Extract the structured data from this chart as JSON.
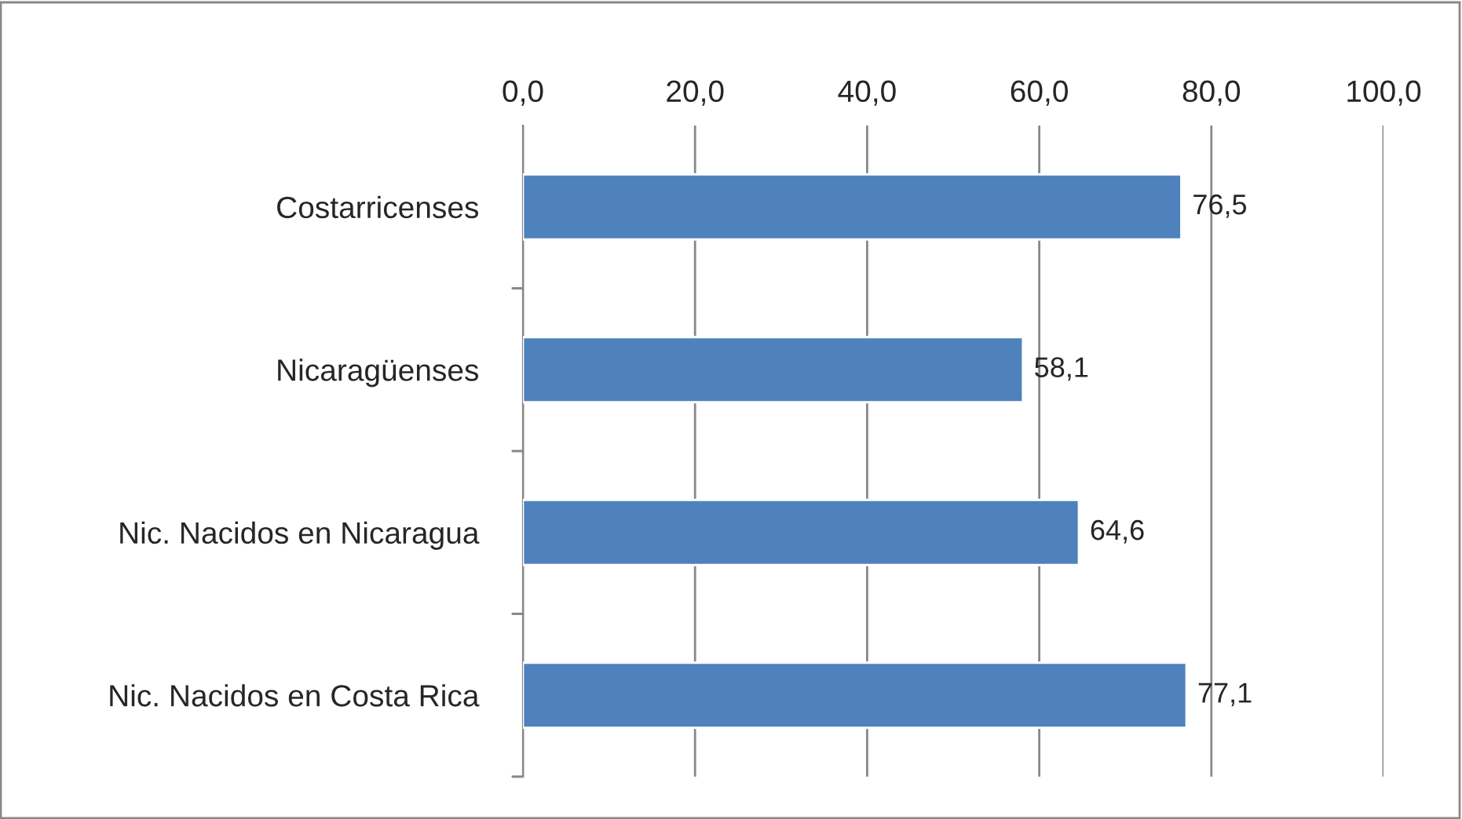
{
  "chart_data": {
    "type": "bar",
    "orientation": "horizontal",
    "categories": [
      "Costarricenses",
      "Nicaragüenses",
      "Nic. Nacidos en Nicaragua",
      "Nic. Nacidos en Costa Rica"
    ],
    "values": [
      76.5,
      58.1,
      64.6,
      77.1
    ],
    "value_labels": [
      "76,5",
      "58,1",
      "64,6",
      "77,1"
    ],
    "color": "#4f81bd",
    "xlim": [
      0,
      100
    ],
    "xticks": [
      {
        "value": 0,
        "label": "0,0"
      },
      {
        "value": 20,
        "label": "20,0"
      },
      {
        "value": 40,
        "label": "40,0"
      },
      {
        "value": 60,
        "label": "60,0"
      },
      {
        "value": 80,
        "label": "80,0"
      },
      {
        "value": 100,
        "label": "100,0"
      }
    ],
    "grid": "x"
  }
}
